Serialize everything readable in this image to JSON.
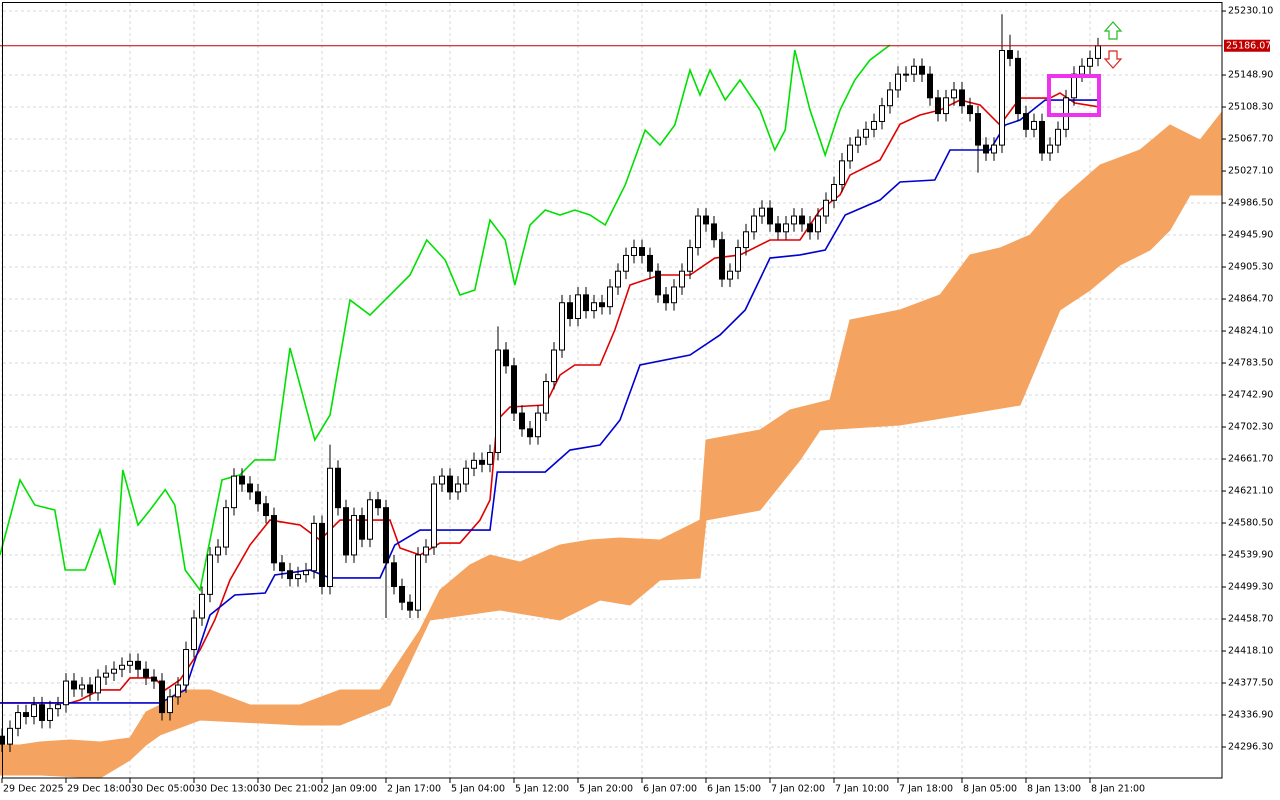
{
  "chart_data": {
    "type": "candlestick",
    "xlim": [
      -0.25,
      152.5
    ],
    "ylim": [
      24257.0,
      25244.1
    ],
    "grid": true,
    "current_price": 25186.07,
    "current_price_color": "#c00000",
    "xticks": [
      {
        "value": 0,
        "label": "29 Dec 2025"
      },
      {
        "value": 8,
        "label": "29 Dec 18:00"
      },
      {
        "value": 16,
        "label": "30 Dec 05:00"
      },
      {
        "value": 24,
        "label": "30 Dec 13:00"
      },
      {
        "value": 32,
        "label": "30 Dec 21:00"
      },
      {
        "value": 40,
        "label": "2 Jan 09:00"
      },
      {
        "value": 48,
        "label": "2 Jan 17:00"
      },
      {
        "value": 56,
        "label": "5 Jan 04:00"
      },
      {
        "value": 64,
        "label": "5 Jan 12:00"
      },
      {
        "value": 72,
        "label": "5 Jan 20:00"
      },
      {
        "value": 80,
        "label": "6 Jan 07:00"
      },
      {
        "value": 88,
        "label": "6 Jan 15:00"
      },
      {
        "value": 96,
        "label": "7 Jan 02:00"
      },
      {
        "value": 104,
        "label": "7 Jan 10:00"
      },
      {
        "value": 112,
        "label": "7 Jan 18:00"
      },
      {
        "value": 120,
        "label": "8 Jan 05:00"
      },
      {
        "value": 128,
        "label": "8 Jan 13:00"
      },
      {
        "value": 136,
        "label": "8 Jan 21:00"
      }
    ],
    "yticks": [
      {
        "value": 25230.1,
        "label": "25230.10"
      },
      {
        "value": 25148.9,
        "label": "25148.90"
      },
      {
        "value": 25108.3,
        "label": "25108.30"
      },
      {
        "value": 25067.7,
        "label": "25067.70"
      },
      {
        "value": 25027.1,
        "label": "25027.10"
      },
      {
        "value": 24986.5,
        "label": "24986.50"
      },
      {
        "value": 24945.9,
        "label": "24945.90"
      },
      {
        "value": 24905.3,
        "label": "24905.30"
      },
      {
        "value": 24864.7,
        "label": "24864.70"
      },
      {
        "value": 24824.1,
        "label": "24824.10"
      },
      {
        "value": 24783.5,
        "label": "24783.50"
      },
      {
        "value": 24742.9,
        "label": "24742.90"
      },
      {
        "value": 24702.3,
        "label": "24702.30"
      },
      {
        "value": 24661.7,
        "label": "24661.70"
      },
      {
        "value": 24621.1,
        "label": "24621.10"
      },
      {
        "value": 24580.5,
        "label": "24580.50"
      },
      {
        "value": 24539.9,
        "label": "24539.90"
      },
      {
        "value": 24499.3,
        "label": "24499.30"
      },
      {
        "value": 24458.7,
        "label": "24458.70"
      },
      {
        "value": 24418.1,
        "label": "24418.10"
      },
      {
        "value": 24377.5,
        "label": "24377.50"
      },
      {
        "value": 24336.9,
        "label": "24336.90"
      },
      {
        "value": 24296.3,
        "label": "24296.30"
      }
    ],
    "candles": {
      "open": [
        24310,
        24300,
        24320,
        24340,
        24335,
        24350,
        24330,
        24345,
        24350,
        24380,
        24370,
        24375,
        24365,
        24385,
        24390,
        24395,
        24400,
        24405,
        24395,
        24385,
        24380,
        24340,
        24360,
        24375,
        24420,
        24460,
        24490,
        24540,
        24550,
        24600,
        24640,
        24630,
        24620,
        24605,
        24590,
        24530,
        24520,
        24510,
        24515,
        24520,
        24580,
        24500,
        24650,
        24600,
        24540,
        24590,
        24560,
        24610,
        24600,
        24530,
        24500,
        24480,
        24470,
        24540,
        24550,
        24630,
        24640,
        24620,
        24630,
        24650,
        24660,
        24655,
        24670,
        24800,
        24780,
        24720,
        24700,
        24690,
        24720,
        24760,
        24800,
        24860,
        24840,
        24870,
        24850,
        24860,
        24855,
        24880,
        24900,
        24920,
        24930,
        24920,
        24900,
        24870,
        24860,
        24880,
        24900,
        24930,
        24970,
        24960,
        24940,
        24890,
        24900,
        24930,
        24950,
        24970,
        24980,
        24960,
        24950,
        24960,
        24970,
        24960,
        24950,
        24970,
        24990,
        25010,
        25040,
        25060,
        25070,
        25080,
        25090,
        25110,
        25130,
        25150,
        25150,
        25160,
        25150,
        25120,
        25100,
        25120,
        25130,
        25110,
        25100,
        25060,
        25050,
        25060,
        25180,
        25170,
        25100,
        25080,
        25090,
        25050,
        25060,
        25080,
        25120,
        25150,
        25160,
        25170
      ],
      "high": [
        24320,
        24330,
        24350,
        24350,
        24360,
        24360,
        24355,
        24360,
        24390,
        24390,
        24385,
        24385,
        24395,
        24400,
        24405,
        24410,
        24415,
        24415,
        24405,
        24395,
        24390,
        24370,
        24385,
        24430,
        24470,
        24500,
        24550,
        24560,
        24610,
        24650,
        24650,
        24640,
        24630,
        24615,
        24600,
        24540,
        24530,
        24525,
        24530,
        24590,
        24590,
        24680,
        24660,
        24610,
        24600,
        24600,
        24620,
        24620,
        24610,
        24540,
        24510,
        24490,
        24550,
        24560,
        24640,
        24650,
        24650,
        24640,
        24660,
        24670,
        24670,
        24680,
        24830,
        24810,
        24790,
        24730,
        24710,
        24730,
        24770,
        24810,
        24870,
        24870,
        24880,
        24880,
        24870,
        24870,
        24890,
        24910,
        24930,
        24940,
        24940,
        24930,
        24910,
        24880,
        24890,
        24910,
        24940,
        24980,
        24980,
        24970,
        24950,
        24910,
        24940,
        24960,
        24980,
        24990,
        24990,
        24970,
        24970,
        24980,
        24980,
        24970,
        24980,
        25000,
        25020,
        25050,
        25070,
        25080,
        25090,
        25100,
        25120,
        25140,
        25160,
        25160,
        25170,
        25170,
        25160,
        25130,
        25130,
        25140,
        25140,
        25120,
        25110,
        25070,
        25070,
        25226,
        25200,
        25180,
        25110,
        25100,
        25100,
        25070,
        25090,
        25130,
        25160,
        25170,
        25180,
        25196
      ],
      "low": [
        24290,
        24290,
        24310,
        24325,
        24325,
        24320,
        24320,
        24335,
        24340,
        24360,
        24360,
        24355,
        24355,
        24375,
        24380,
        24385,
        24390,
        24385,
        24375,
        24370,
        24330,
        24330,
        24350,
        24365,
        24410,
        24450,
        24480,
        24530,
        24540,
        24590,
        24620,
        24610,
        24595,
        24580,
        24520,
        24510,
        24500,
        24500,
        24505,
        24510,
        24490,
        24490,
        24590,
        24530,
        24530,
        24550,
        24550,
        24590,
        24460,
        24490,
        24470,
        24460,
        24460,
        24530,
        24540,
        24620,
        24610,
        24610,
        24620,
        24640,
        24645,
        24645,
        24660,
        24770,
        24710,
        24690,
        24680,
        24680,
        24710,
        24750,
        24790,
        24830,
        24830,
        24840,
        24840,
        24845,
        24845,
        24870,
        24890,
        24910,
        24910,
        24890,
        24860,
        24850,
        24850,
        24870,
        24890,
        24920,
        24950,
        24930,
        24880,
        24880,
        24890,
        24920,
        24940,
        24960,
        24950,
        24940,
        24940,
        24950,
        24950,
        24940,
        24940,
        24960,
        24980,
        25000,
        25030,
        25050,
        25060,
        25070,
        25080,
        25100,
        25120,
        25140,
        25140,
        25140,
        25110,
        25090,
        25090,
        25110,
        25100,
        25090,
        25025,
        25040,
        25040,
        25050,
        25160,
        25090,
        25070,
        25070,
        25040,
        25040,
        25050,
        25070,
        25110,
        25140,
        25150,
        25160
      ],
      "close": [
        24300,
        24320,
        24340,
        24335,
        24350,
        24330,
        24345,
        24350,
        24380,
        24370,
        24375,
        24365,
        24385,
        24390,
        24395,
        24400,
        24405,
        24395,
        24385,
        24380,
        24340,
        24360,
        24375,
        24420,
        24460,
        24490,
        24540,
        24550,
        24600,
        24640,
        24630,
        24620,
        24605,
        24590,
        24530,
        24520,
        24510,
        24515,
        24520,
        24580,
        24500,
        24650,
        24600,
        24540,
        24590,
        24560,
        24610,
        24600,
        24530,
        24500,
        24480,
        24470,
        24540,
        24550,
        24630,
        24640,
        24620,
        24630,
        24650,
        24660,
        24655,
        24670,
        24800,
        24780,
        24720,
        24700,
        24690,
        24720,
        24760,
        24800,
        24860,
        24840,
        24870,
        24850,
        24860,
        24855,
        24880,
        24900,
        24920,
        24930,
        24920,
        24900,
        24870,
        24860,
        24880,
        24900,
        24930,
        24970,
        24960,
        24940,
        24890,
        24900,
        24930,
        24950,
        24970,
        24980,
        24960,
        24950,
        24960,
        24970,
        24960,
        24950,
        24970,
        24990,
        25010,
        25040,
        25060,
        25070,
        25080,
        25090,
        25110,
        25130,
        25150,
        25150,
        25160,
        25150,
        25120,
        25100,
        25120,
        25130,
        25110,
        25100,
        25060,
        25050,
        25060,
        25180,
        25170,
        25100,
        25080,
        25090,
        25050,
        25060,
        25080,
        25120,
        25150,
        25160,
        25170,
        25186
      ]
    },
    "cloud": {
      "color": "#f4a460",
      "span_a": {
        "x": [
          -0.25,
          2.25,
          4.75,
          8.5,
          12.25,
          16,
          18,
          19.75,
          22.25,
          26,
          31,
          37.25,
          42.25,
          47.25,
          49.75,
          52.25,
          54.75,
          58.5,
          61,
          64.75,
          69.75,
          73.5,
          77.25,
          82.25,
          87.25,
          88,
          94.75,
          98.5,
          103.5,
          106,
          112.25,
          117.25,
          121,
          124.75,
          128.5,
          132.25,
          137.25,
          142.25,
          146,
          149.75,
          152.5
        ],
        "values": [
          24298.9,
          24298.9,
          24302.7,
          24305.2,
          24302.7,
          24307.8,
          24340.7,
          24349.6,
          24368.7,
          24368.7,
          24349.6,
          24349.6,
          24368.7,
          24368.7,
          24406.7,
          24444.8,
          24495.5,
          24527.3,
          24539.9,
          24531.0,
          24552.6,
          24558.9,
          24561.5,
          24558.9,
          24584.3,
          24685.8,
          24698.5,
          24723.9,
          24736.6,
          24838.1,
          24850.8,
          24869.8,
          24920.6,
          24929.4,
          24945.9,
          24990.3,
          25034.7,
          25053.8,
          25085.5,
          25066.4,
          25102.0
        ]
      },
      "span_b": {
        "x": [
          -0.25,
          4.75,
          12.25,
          16,
          18,
          19.75,
          24.75,
          37.25,
          42.25,
          48.5,
          53.5,
          62.25,
          69.75,
          74.75,
          78.5,
          82.25,
          87.25,
          88,
          94.75,
          99.75,
          102.25,
          112.25,
          119.75,
          127.25,
          132.25,
          136,
          139.75,
          143.5,
          146,
          148.5,
          152.5
        ],
        "values": [
          24260.8,
          24260.8,
          24257.0,
          24279.8,
          24298.9,
          24311.6,
          24330.6,
          24324.3,
          24324.3,
          24349.6,
          24457.5,
          24470.1,
          24457.5,
          24482.8,
          24476.5,
          24508.2,
          24510.8,
          24584.3,
          24597.0,
          24660.5,
          24698.5,
          24704.9,
          24717.5,
          24730.2,
          24850.8,
          24876.1,
          24907.9,
          24926.9,
          24952.3,
          24996.7,
          24996.7
        ]
      }
    },
    "lines": [
      {
        "color": "#00e000",
        "x": [
          -0.25,
          2.25,
          4.1,
          6.6,
          7.9,
          10.4,
          12.25,
          14.1,
          15.1,
          17,
          18.5,
          20.4,
          21.6,
          22.9,
          24.75,
          27.5,
          29.75,
          31.6,
          34.1,
          36,
          39.1,
          41,
          43.5,
          46,
          48.5,
          51,
          53.1,
          55.4,
          57.25,
          59.1,
          61,
          62.9,
          64.1,
          66,
          67.9,
          69.75,
          71.6,
          73.5,
          75.4,
          77.9,
          80.4,
          82.25,
          84.1,
          86,
          87.25,
          88.5,
          90.4,
          92.25,
          94.75,
          96.6,
          97.9,
          99.1,
          101,
          102.9,
          104.75,
          106.6,
          108.5,
          111
        ],
        "values": [
          24539.9,
          24635.2,
          24603.4,
          24597,
          24520.9,
          24520.9,
          24571.6,
          24501.9,
          24647.8,
          24578,
          24597,
          24622.9,
          24603.4,
          24520.9,
          24495.5,
          24635.2,
          24641.5,
          24660.5,
          24660.5,
          24802.6,
          24685.8,
          24717.5,
          24863.5,
          24844.4,
          24869.8,
          24895.2,
          24939.6,
          24914.2,
          24869.8,
          24876.1,
          24965,
          24939.6,
          24882.5,
          24958.6,
          24977.6,
          24971.3,
          24977.6,
          24971.3,
          24958.6,
          25009.4,
          25079.1,
          25060.1,
          25085.5,
          25155.2,
          25123.6,
          25155.2,
          25117.2,
          25142.6,
          25104.5,
          25053.8,
          25079.1,
          25180.6,
          25104.5,
          25047.4,
          25104.5,
          25142.6,
          25168,
          25187
        ]
      },
      {
        "color": "#e00000",
        "x": [
          -0.25,
          8.5,
          9.75,
          12.25,
          14.75,
          16,
          19.1,
          20.4,
          22.25,
          24.75,
          26.6,
          28.5,
          31,
          33.5,
          37.25,
          39.75,
          42.25,
          48.5,
          49.75,
          52.25,
          54.75,
          57.25,
          59.75,
          61,
          61.9,
          63.5,
          67.9,
          69.75,
          71.6,
          74.75,
          76.6,
          78.5,
          82.25,
          86,
          89.1,
          92.25,
          96,
          99.75,
          102.25,
          104.75,
          106,
          109.75,
          112.25,
          114.75,
          117.25,
          119.75,
          122.25,
          124.75,
          127.25,
          131,
          132.25,
          134.1,
          137.25
        ],
        "values": [
          24352.2,
          24352.2,
          24356,
          24368.7,
          24368.7,
          24383.9,
          24383.9,
          24368.7,
          24381.4,
          24419.4,
          24457.5,
          24508.2,
          24552.6,
          24584.3,
          24578,
          24558.9,
          24584.3,
          24584.3,
          24548.8,
          24539.9,
          24555.1,
          24555.1,
          24584.3,
          24609.7,
          24711.2,
          24727.7,
          24730.2,
          24768.3,
          24781,
          24781,
          24825.4,
          24882.5,
          24895.2,
          24895.2,
          24916.7,
          24920.6,
          24939.6,
          24939.6,
          24977.6,
          24996.7,
          25022,
          25041.1,
          25086.5,
          25098.2,
          25104.5,
          25117.2,
          25110.9,
          25085.5,
          25119.7,
          25119.7,
          25126.1,
          25113.4,
          25108.3
        ]
      },
      {
        "color": "#0000d0",
        "x": [
          -0.25,
          19.75,
          22.9,
          26,
          29.1,
          32.9,
          34.1,
          38.5,
          41,
          47.25,
          49.1,
          52.25,
          61,
          61.9,
          67.9,
          71,
          74.75,
          77.25,
          79.75,
          86,
          89.75,
          92.9,
          96,
          99.75,
          102.9,
          105.4,
          109.75,
          112.25,
          116.6,
          118.5,
          123.5,
          125.4,
          127.25,
          130.4,
          137.25
        ],
        "values": [
          24352.2,
          24352.2,
          24368.7,
          24463.8,
          24489.2,
          24491.7,
          24514.6,
          24520.9,
          24510.8,
          24510.8,
          24552.6,
          24571.6,
          24571.6,
          24645.2,
          24645.2,
          24673.1,
          24679.5,
          24711.2,
          24781,
          24793.7,
          24819.1,
          24850.8,
          24916.7,
          24920.6,
          24926.9,
          24971.3,
          24990.3,
          25013.2,
          25015.7,
          25053.8,
          25053.8,
          25085.5,
          25091.8,
          25117.2,
          25117.2
        ]
      }
    ]
  }
}
